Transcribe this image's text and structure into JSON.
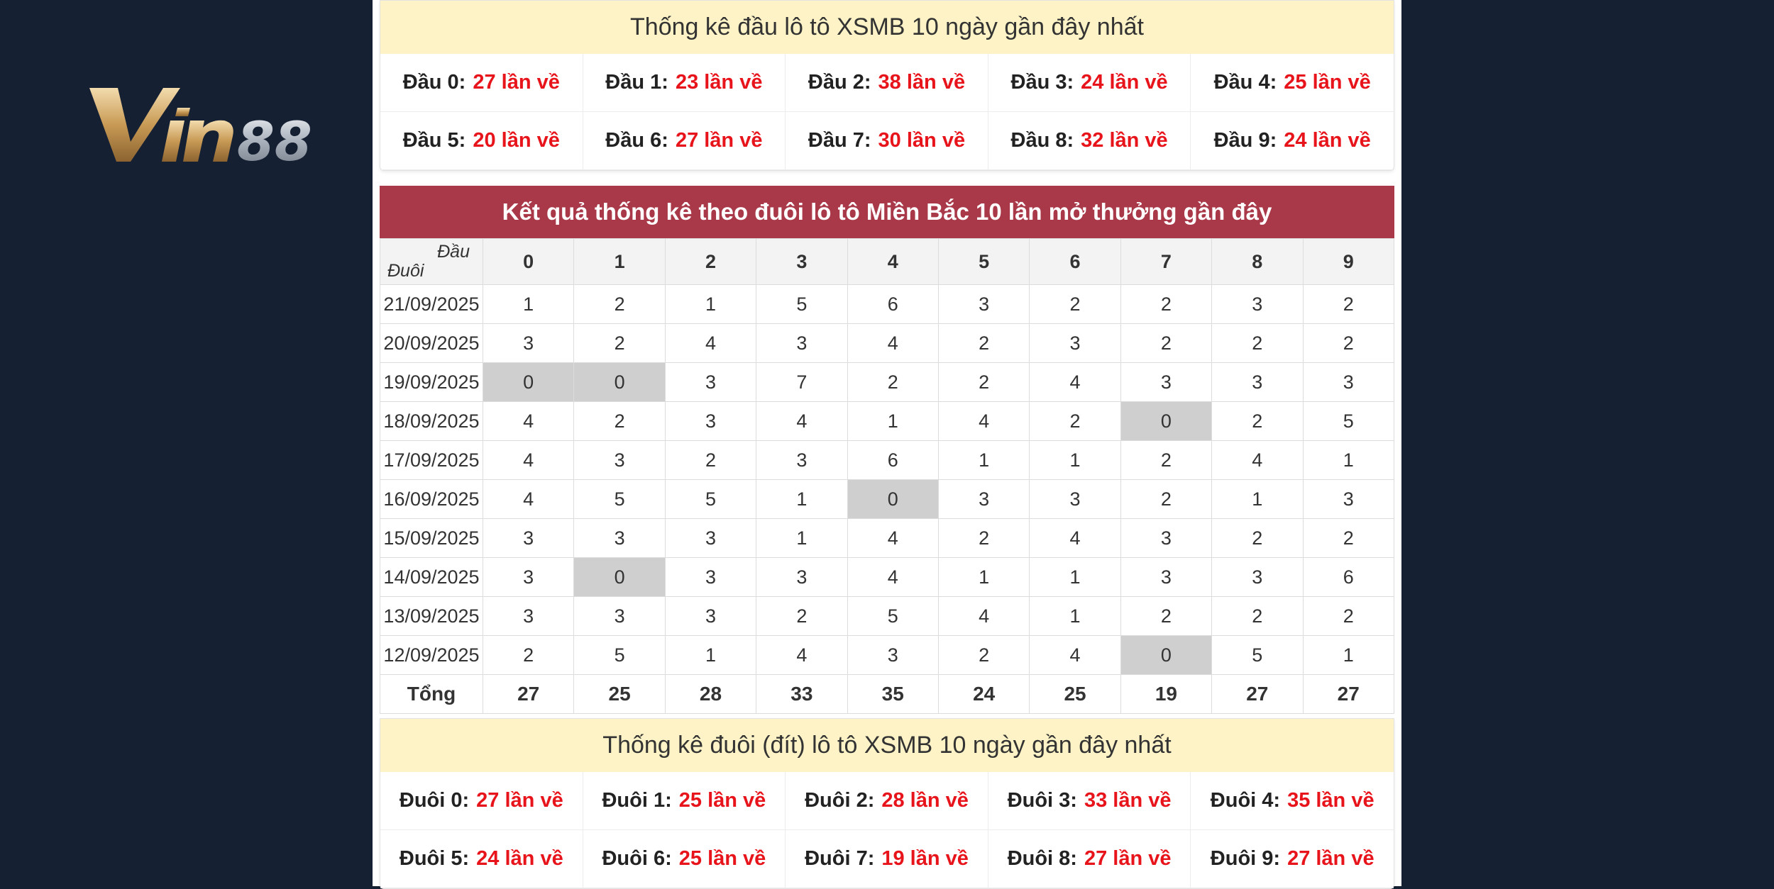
{
  "logo": {
    "text": "Vin88"
  },
  "dau_section": {
    "title": "Thống kê đầu lô tô XSMB 10 ngày gần đây nhất",
    "items": [
      {
        "label": "Đầu 0:",
        "count": "27 lần về"
      },
      {
        "label": "Đầu 1:",
        "count": "23 lần về"
      },
      {
        "label": "Đầu 2:",
        "count": "38 lần về"
      },
      {
        "label": "Đầu 3:",
        "count": "24 lần về"
      },
      {
        "label": "Đầu 4:",
        "count": "25 lần về"
      },
      {
        "label": "Đầu 5:",
        "count": "20 lần về"
      },
      {
        "label": "Đầu 6:",
        "count": "27 lần về"
      },
      {
        "label": "Đầu 7:",
        "count": "30 lần về"
      },
      {
        "label": "Đầu 8:",
        "count": "32 lần về"
      },
      {
        "label": "Đầu 9:",
        "count": "24 lần về"
      }
    ]
  },
  "table": {
    "title": "Kết quả thống kê theo đuôi lô tô Miền Bắc 10 lần mở thưởng gần đây",
    "corner_top": "Đầu",
    "corner_bottom": "Đuôi",
    "columns": [
      "0",
      "1",
      "2",
      "3",
      "4",
      "5",
      "6",
      "7",
      "8",
      "9"
    ],
    "rows": [
      {
        "date": "21/09/2025",
        "values": [
          "1",
          "2",
          "1",
          "5",
          "6",
          "3",
          "2",
          "2",
          "3",
          "2"
        ]
      },
      {
        "date": "20/09/2025",
        "values": [
          "3",
          "2",
          "4",
          "3",
          "4",
          "2",
          "3",
          "2",
          "2",
          "2"
        ]
      },
      {
        "date": "19/09/2025",
        "values": [
          "0",
          "0",
          "3",
          "7",
          "2",
          "2",
          "4",
          "3",
          "3",
          "3"
        ]
      },
      {
        "date": "18/09/2025",
        "values": [
          "4",
          "2",
          "3",
          "4",
          "1",
          "4",
          "2",
          "0",
          "2",
          "5"
        ]
      },
      {
        "date": "17/09/2025",
        "values": [
          "4",
          "3",
          "2",
          "3",
          "6",
          "1",
          "1",
          "2",
          "4",
          "1"
        ]
      },
      {
        "date": "16/09/2025",
        "values": [
          "4",
          "5",
          "5",
          "1",
          "0",
          "3",
          "3",
          "2",
          "1",
          "3"
        ]
      },
      {
        "date": "15/09/2025",
        "values": [
          "3",
          "3",
          "3",
          "1",
          "4",
          "2",
          "4",
          "3",
          "2",
          "2"
        ]
      },
      {
        "date": "14/09/2025",
        "values": [
          "3",
          "0",
          "3",
          "3",
          "4",
          "1",
          "1",
          "3",
          "3",
          "6"
        ]
      },
      {
        "date": "13/09/2025",
        "values": [
          "3",
          "3",
          "3",
          "2",
          "5",
          "4",
          "1",
          "2",
          "2",
          "2"
        ]
      },
      {
        "date": "12/09/2025",
        "values": [
          "2",
          "5",
          "1",
          "4",
          "3",
          "2",
          "4",
          "0",
          "5",
          "1"
        ]
      }
    ],
    "total_label": "Tổng",
    "totals": [
      "27",
      "25",
      "28",
      "33",
      "35",
      "24",
      "25",
      "19",
      "27",
      "27"
    ]
  },
  "duoi_section": {
    "title": "Thống kê đuôi (đít) lô tô XSMB 10 ngày gần đây nhất",
    "items": [
      {
        "label": "Đuôi 0:",
        "count": "27 lần về"
      },
      {
        "label": "Đuôi 1:",
        "count": "25 lần về"
      },
      {
        "label": "Đuôi 2:",
        "count": "28 lần về"
      },
      {
        "label": "Đuôi 3:",
        "count": "33 lần về"
      },
      {
        "label": "Đuôi 4:",
        "count": "35 lần về"
      },
      {
        "label": "Đuôi 5:",
        "count": "24 lần về"
      },
      {
        "label": "Đuôi 6:",
        "count": "25 lần về"
      },
      {
        "label": "Đuôi 7:",
        "count": "19 lần về"
      },
      {
        "label": "Đuôi 8:",
        "count": "27 lần về"
      },
      {
        "label": "Đuôi 9:",
        "count": "27 lần về"
      }
    ]
  },
  "colors": {
    "background": "#152033",
    "header_red": "#a93848",
    "header_yellow": "#fdf3c6",
    "count_red": "#e8141b",
    "zero_cell": "#cfcfcf"
  }
}
